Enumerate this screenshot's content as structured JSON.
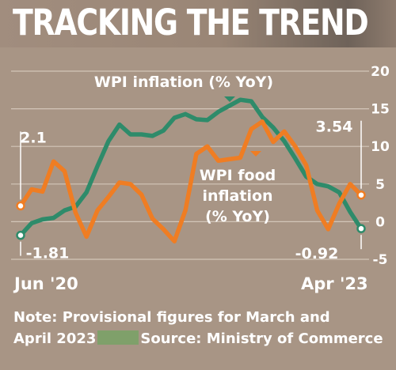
{
  "title": "TRACKING THE TREND",
  "note": {
    "line1": "Note: Provisional figures for March and",
    "line2_left": "April 2023",
    "line2_right": "Source: Ministry of Commerce"
  },
  "colors": {
    "wpi": "#2e8b6a",
    "food": "#ef7d23",
    "grid": "#d3c6b9",
    "text": "#ffffff"
  },
  "chart_data": {
    "type": "line",
    "x_start_label": "Jun '20",
    "x_end_label": "Apr '23",
    "y_ticks": [
      20,
      15,
      10,
      5,
      0,
      -5
    ],
    "ylim": [
      -5,
      20
    ],
    "grid": true,
    "series": [
      {
        "name": "WPI inflation (% YoY)",
        "values": [
          -1.81,
          -0.2,
          0.3,
          0.5,
          1.5,
          2.0,
          3.9,
          7.4,
          10.7,
          12.9,
          11.6,
          11.6,
          11.4,
          12.1,
          13.8,
          14.3,
          13.6,
          13.5,
          14.6,
          15.4,
          16.2,
          16.0,
          13.9,
          12.5,
          10.7,
          8.4,
          6.0,
          5.0,
          4.7,
          3.9,
          1.3,
          -0.92
        ],
        "labels": {
          "first": "-1.81",
          "last": "-0.92"
        }
      },
      {
        "name": "WPI food inflation (% YoY)",
        "values": [
          2.1,
          4.3,
          4.0,
          8.0,
          6.7,
          1.2,
          -2.0,
          1.5,
          3.3,
          5.2,
          5.0,
          3.6,
          0.4,
          -1.0,
          -2.6,
          1.5,
          9.0,
          10.0,
          8.1,
          8.3,
          8.5,
          12.3,
          13.3,
          10.6,
          12.0,
          10.0,
          7.5,
          1.5,
          -1.0,
          2.4,
          5.0,
          3.54
        ],
        "labels": {
          "first": "2.1",
          "last": "3.54"
        }
      }
    ]
  }
}
